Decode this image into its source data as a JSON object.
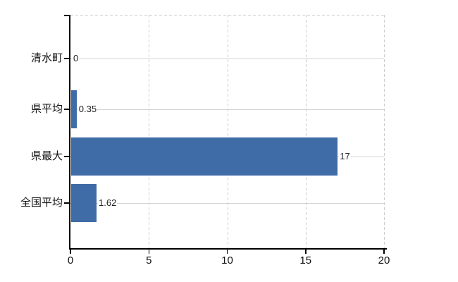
{
  "chart_data": {
    "type": "bar",
    "orientation": "horizontal",
    "title": "",
    "categories": [
      "清水町",
      "県平均",
      "県最大",
      "全国平均"
    ],
    "values": [
      0,
      0.35,
      17,
      1.62
    ],
    "value_labels": [
      "0",
      "0.35",
      "17",
      "1.62"
    ],
    "x_tick_labels": [
      "0",
      "5",
      "10",
      "15",
      "20"
    ],
    "x_tick_values": [
      0,
      5,
      10,
      15,
      20
    ],
    "xlim": [
      0,
      20
    ],
    "grid": {
      "vertical": "dashed",
      "horizontal": "solid",
      "top_border": "dashed"
    },
    "legend": "none",
    "colors": {
      "bar": "#3f6ca6",
      "grid_solid": "#d4d4d4",
      "grid_dashed": "#cccccc",
      "axis": "#000000",
      "text": "#111111",
      "background": "#ffffff"
    }
  }
}
